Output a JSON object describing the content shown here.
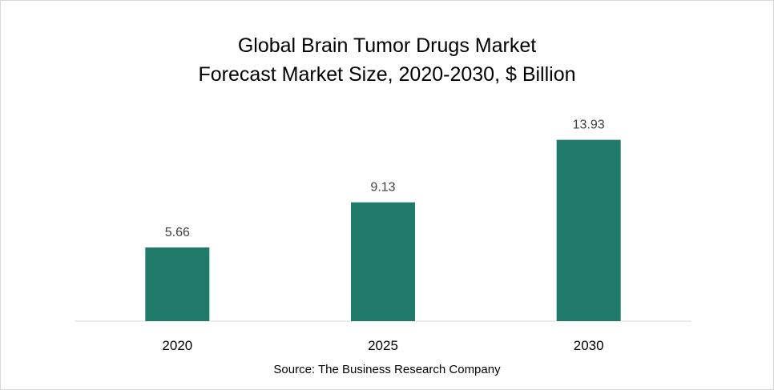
{
  "chart_data": {
    "type": "bar",
    "title_line1": "Global Brain Tumor Drugs Market",
    "title_line2": "Forecast Market Size, 2020-2030, $ Billion",
    "categories": [
      "2020",
      "2025",
      "2030"
    ],
    "values": [
      5.66,
      9.13,
      13.93
    ],
    "value_labels": [
      "5.66",
      "9.13",
      "13.93"
    ],
    "ylim": [
      0,
      16
    ],
    "grid": false,
    "legend": "none",
    "bar_color": "#1f7a6a",
    "source": "Source: The Business Research Company"
  }
}
